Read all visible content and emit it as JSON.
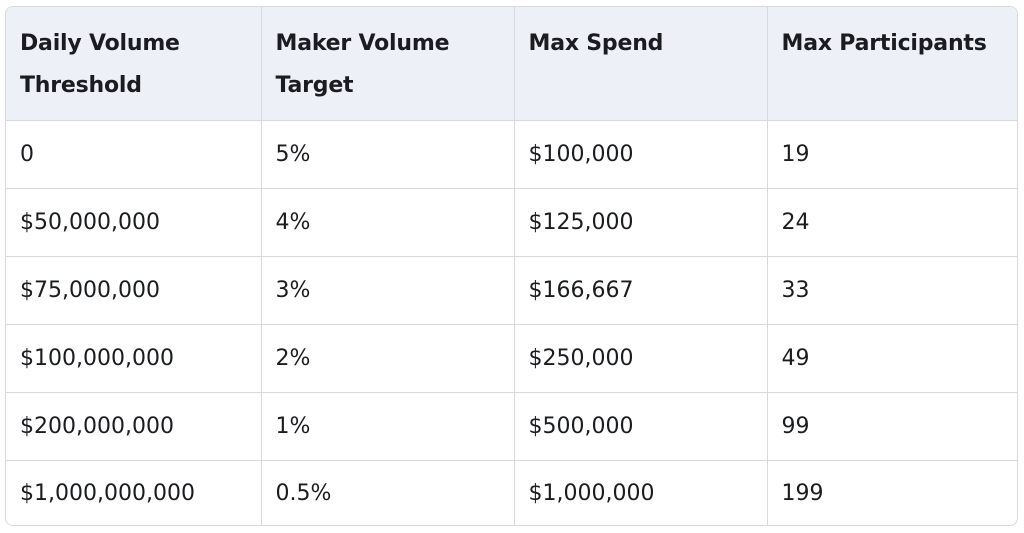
{
  "table": {
    "headers": [
      "Daily Volume Threshold",
      "Maker Volume Target",
      "Max Spend",
      "Max Participants"
    ],
    "rows": [
      [
        "0",
        "5%",
        "$100,000",
        "19"
      ],
      [
        "$50,000,000",
        "4%",
        "$125,000",
        "24"
      ],
      [
        "$75,000,000",
        "3%",
        "$166,667",
        "33"
      ],
      [
        "$100,000,000",
        "2%",
        "$250,000",
        "49"
      ],
      [
        "$200,000,000",
        "1%",
        "$500,000",
        "99"
      ],
      [
        "$1,000,000,000",
        "0.5%",
        "$1,000,000",
        "199"
      ]
    ]
  },
  "colors": {
    "header_bg": "#eef0f8",
    "border": "#d7d9de",
    "text": "#1b1c1f"
  }
}
